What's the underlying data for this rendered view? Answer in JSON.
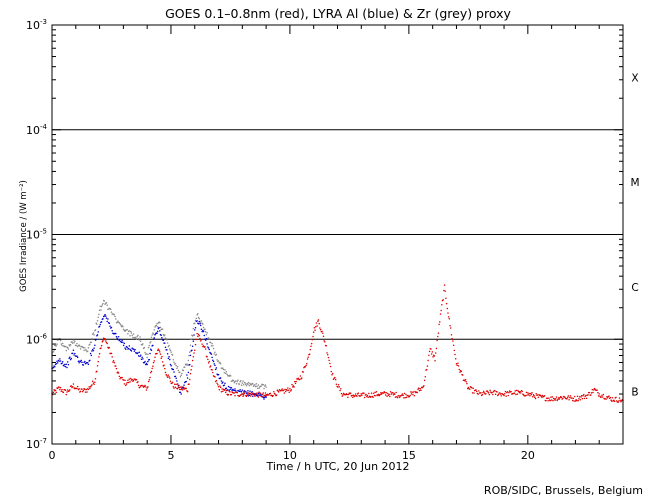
{
  "chart_data": {
    "type": "scatter",
    "title": "GOES 0.1–0.8nm (red), LYRA Al (blue) & Zr (grey) proxy",
    "xlabel": "Time / h UTC, 20 Jun 2012",
    "ylabel": "GOES Irradiance / (W m⁻²)",
    "xlim": [
      0,
      24
    ],
    "ylim": [
      1e-07,
      0.001
    ],
    "y_scale": "log",
    "grid": "horizontal lines at class boundaries",
    "x_ticks": [
      "0",
      "5",
      "10",
      "15",
      "20"
    ],
    "y_ticks": [
      {
        "base": "10",
        "exp": "-3"
      },
      {
        "base": "10",
        "exp": "-4"
      },
      {
        "base": "10",
        "exp": "-5"
      },
      {
        "base": "10",
        "exp": "-6"
      },
      {
        "base": "10",
        "exp": "-7"
      }
    ],
    "flare_class_labels": [
      "X",
      "M",
      "C",
      "B"
    ],
    "class_lines": [
      0.0001,
      1e-05,
      1e-06
    ],
    "series": [
      {
        "color": "#e00000",
        "x": [
          0,
          0.3,
          0.6,
          0.9,
          1.2,
          1.5,
          1.8,
          2.0,
          2.2,
          2.5,
          2.8,
          3.1,
          3.4,
          3.7,
          4.0,
          4.3,
          4.5,
          4.8,
          5.1,
          5.4,
          5.7,
          6.0,
          6.1,
          6.4,
          6.7,
          7.0,
          7.3,
          7.6,
          8.0,
          8.5,
          9.0,
          9.5,
          10.0,
          10.5,
          10.8,
          11.0,
          11.2,
          11.5,
          11.8,
          12.2,
          12.7,
          13.2,
          13.7,
          14.2,
          14.7,
          15.2,
          15.6,
          15.9,
          16.1,
          16.3,
          16.5,
          16.7,
          17.0,
          17.5,
          18.0,
          18.5,
          19.0,
          19.5,
          20.0,
          20.5,
          21.0,
          21.5,
          22.0,
          22.5,
          22.8,
          23.0,
          23.5,
          24.0
        ],
        "y": [
          3e-07,
          3.4e-07,
          3.1e-07,
          3.6e-07,
          3.2e-07,
          3.3e-07,
          4e-07,
          7.5e-07,
          1.05e-06,
          7e-07,
          4.5e-07,
          3.8e-07,
          4.2e-07,
          3.6e-07,
          3.4e-07,
          6.5e-07,
          8e-07,
          4.8e-07,
          3.6e-07,
          3.4e-07,
          3.3e-07,
          8e-07,
          1.12e-06,
          8.5e-07,
          5e-07,
          3.5e-07,
          3.1e-07,
          3e-07,
          3e-07,
          3e-07,
          2.9e-07,
          3.1e-07,
          3.3e-07,
          4.5e-07,
          7e-07,
          1.2e-06,
          1.5e-06,
          9e-07,
          4.5e-07,
          3e-07,
          2.9e-07,
          2.9e-07,
          3e-07,
          3e-07,
          2.9e-07,
          3e-07,
          3.5e-07,
          8e-07,
          6.5e-07,
          1.5e-06,
          3.1e-06,
          1.5e-06,
          6e-07,
          3.4e-07,
          3e-07,
          3.1e-07,
          3e-07,
          3.1e-07,
          3e-07,
          2.8e-07,
          2.7e-07,
          2.8e-07,
          2.7e-07,
          2.9e-07,
          3.3e-07,
          3e-07,
          2.7e-07,
          2.6e-07
        ]
      },
      {
        "color": "#0000d0",
        "x": [
          0,
          0.3,
          0.6,
          0.9,
          1.2,
          1.5,
          1.8,
          2.0,
          2.2,
          2.5,
          2.8,
          3.1,
          3.4,
          3.7,
          4.0,
          4.3,
          4.5,
          4.8,
          5.1,
          5.4,
          5.7,
          6.0,
          6.1,
          6.4,
          6.7,
          7.0,
          7.3,
          7.6,
          8.0,
          8.5,
          9.0
        ],
        "y": [
          5e-07,
          6.5e-07,
          5.5e-07,
          7.5e-07,
          6e-07,
          5.8e-07,
          9e-07,
          1.35e-06,
          1.75e-06,
          1.25e-06,
          1e-06,
          8.5e-07,
          8e-07,
          7e-07,
          5.5e-07,
          1.05e-06,
          1.25e-06,
          8e-07,
          5e-07,
          3e-07,
          4.5e-07,
          1.2e-06,
          1.55e-06,
          1.1e-06,
          7e-07,
          4.5e-07,
          3.5e-07,
          3.2e-07,
          3.1e-07,
          3e-07,
          2.8e-07
        ]
      },
      {
        "color": "#888888",
        "x": [
          0,
          0.3,
          0.6,
          0.9,
          1.2,
          1.5,
          1.8,
          2.0,
          2.2,
          2.5,
          2.8,
          3.1,
          3.4,
          3.7,
          4.0,
          4.3,
          4.5,
          4.8,
          5.1,
          5.4,
          5.7,
          6.0,
          6.1,
          6.4,
          6.7,
          7.0,
          7.3,
          7.6,
          8.0,
          8.5,
          9.0
        ],
        "y": [
          7.5e-07,
          1e-06,
          8e-07,
          9.5e-07,
          8.5e-07,
          8e-07,
          1.2e-06,
          1.9e-06,
          2.3e-06,
          1.8e-06,
          1.4e-06,
          1.2e-06,
          1.1e-06,
          1e-06,
          7e-07,
          1.25e-06,
          1.45e-06,
          1e-06,
          6.5e-07,
          4.5e-07,
          6e-07,
          1.5e-06,
          1.75e-06,
          1.3e-06,
          9e-07,
          6e-07,
          4.8e-07,
          4e-07,
          3.8e-07,
          3.6e-07,
          3.5e-07
        ]
      }
    ]
  },
  "credit": "ROB/SIDC, Brussels, Belgium"
}
